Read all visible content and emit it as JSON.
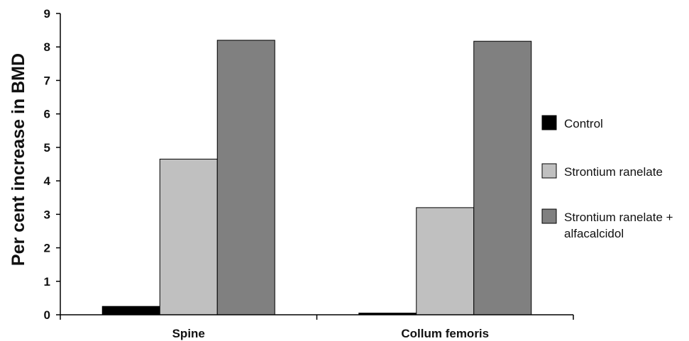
{
  "chart_data": {
    "type": "bar",
    "title": "",
    "xlabel": "",
    "ylabel": "Per cent increase in BMD",
    "ylim": [
      0,
      9
    ],
    "yticks": [
      0,
      1,
      2,
      3,
      4,
      5,
      6,
      7,
      8,
      9
    ],
    "grid": false,
    "legend_position": "right",
    "categories": [
      "Spine",
      "Collum femoris"
    ],
    "series": [
      {
        "name": "Control",
        "color": "#000000",
        "values": [
          0.25,
          0.05
        ]
      },
      {
        "name": "Strontium ranelate",
        "color": "#c0c0c0",
        "values": [
          4.65,
          3.2
        ]
      },
      {
        "name": "Strontium ranelate + alfacalcidol",
        "legend_lines": [
          "Strontium ranelate +",
          "alfacalcidol"
        ],
        "color": "#808080",
        "values": [
          8.2,
          8.17
        ]
      }
    ]
  }
}
